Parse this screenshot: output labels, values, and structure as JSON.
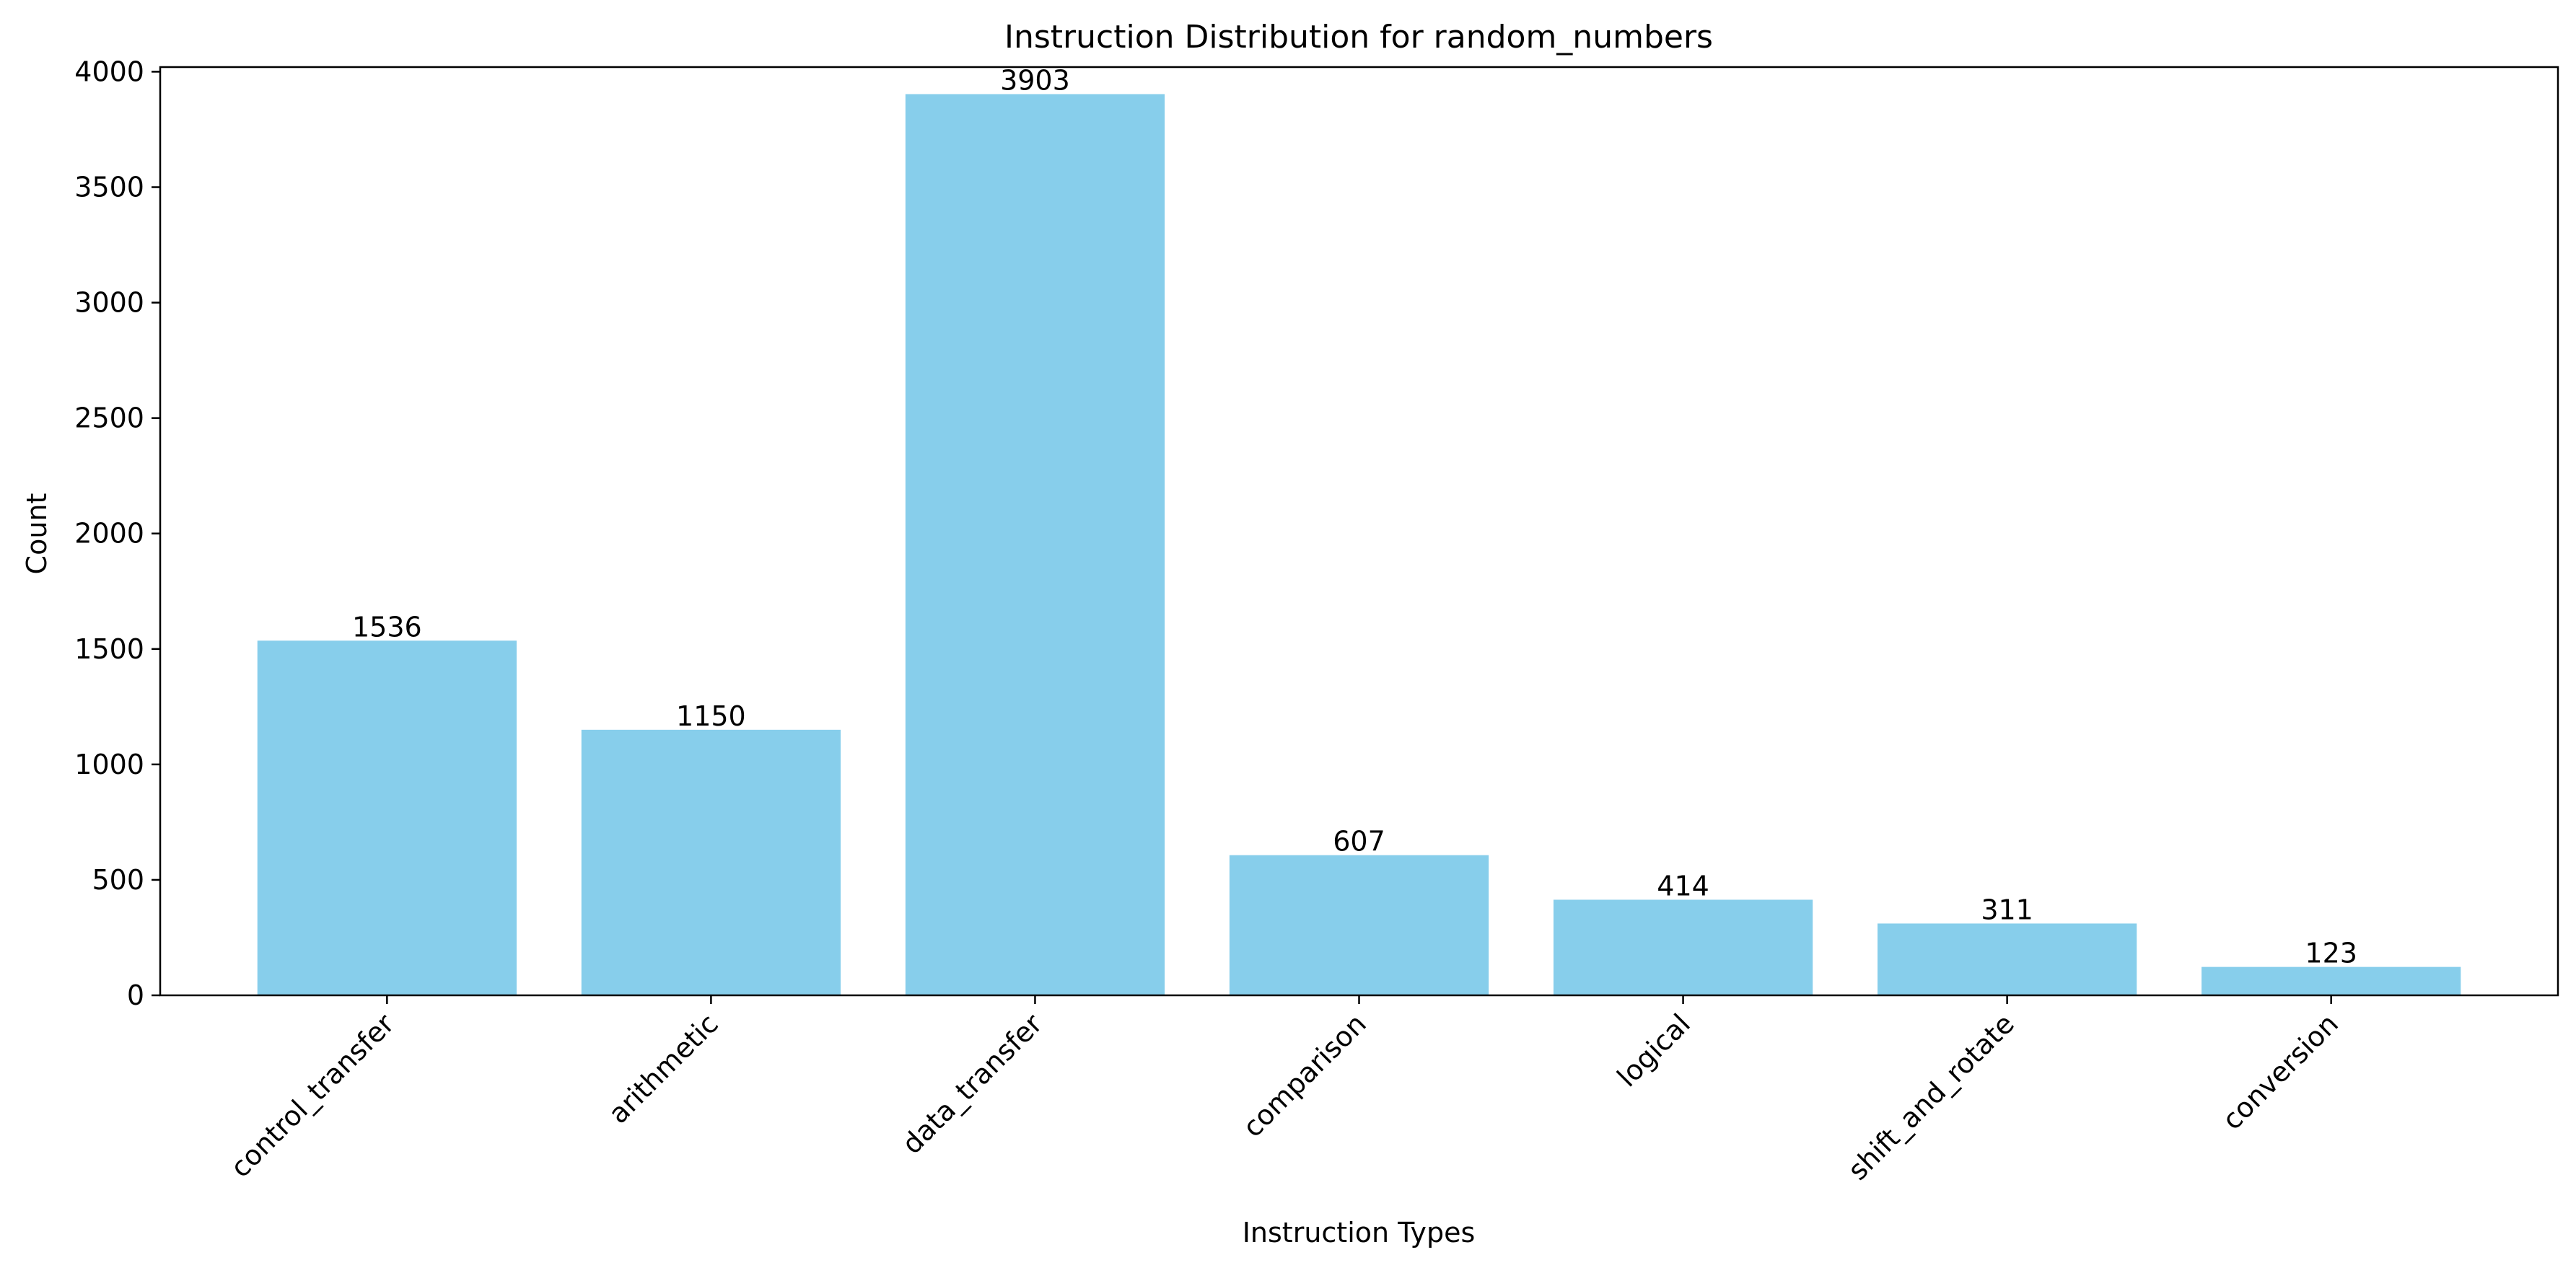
{
  "chart_data": {
    "type": "bar",
    "title": "Instruction Distribution for random_numbers",
    "xlabel": "Instruction Types",
    "ylabel": "Count",
    "categories": [
      "control_transfer",
      "arithmetic",
      "data_transfer",
      "comparison",
      "logical",
      "shift_and_rotate",
      "conversion"
    ],
    "values": [
      1536,
      1150,
      3903,
      607,
      414,
      311,
      123
    ],
    "data_labels": [
      "1536",
      "1150",
      "3903",
      "607",
      "414",
      "311",
      "123"
    ],
    "ylim": [
      0,
      4000
    ],
    "yticks": [
      0,
      500,
      1000,
      1500,
      2000,
      2500,
      3000,
      3500,
      4000
    ],
    "ytick_labels": [
      "0",
      "500",
      "1000",
      "1500",
      "2000",
      "2500",
      "3000",
      "3500",
      "4000"
    ],
    "bar_color": "#87CEEB",
    "grid": false,
    "legend": "none"
  }
}
